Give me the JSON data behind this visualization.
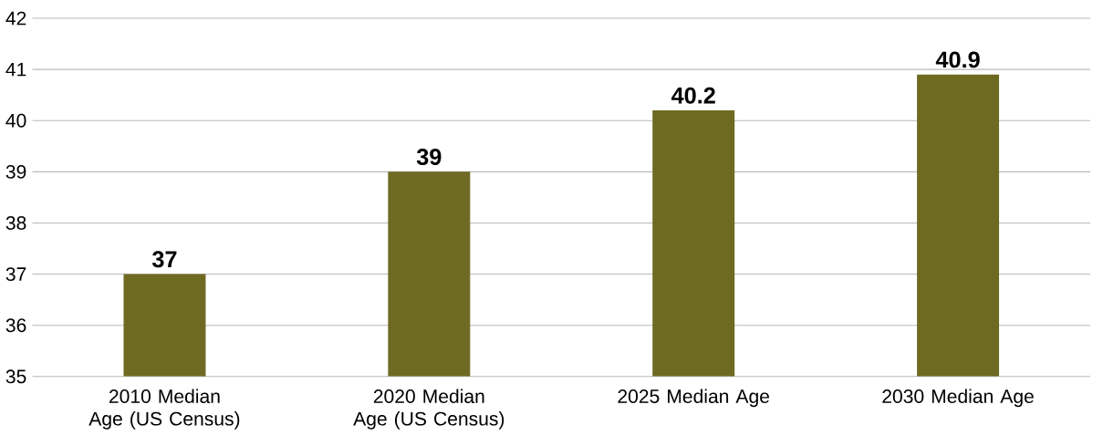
{
  "chart_data": {
    "type": "bar",
    "categories": [
      "2010 Median Age (US Census)",
      "2020 Median Age (US Census)",
      "2025 Median Age",
      "2030 Median Age"
    ],
    "values": [
      37,
      39,
      40.2,
      40.9
    ],
    "color": "#6f6a22",
    "ylim": [
      35,
      42
    ],
    "yticks": [
      35,
      36,
      37,
      38,
      39,
      40,
      41,
      42
    ],
    "grid": "y",
    "data_labels": true
  }
}
